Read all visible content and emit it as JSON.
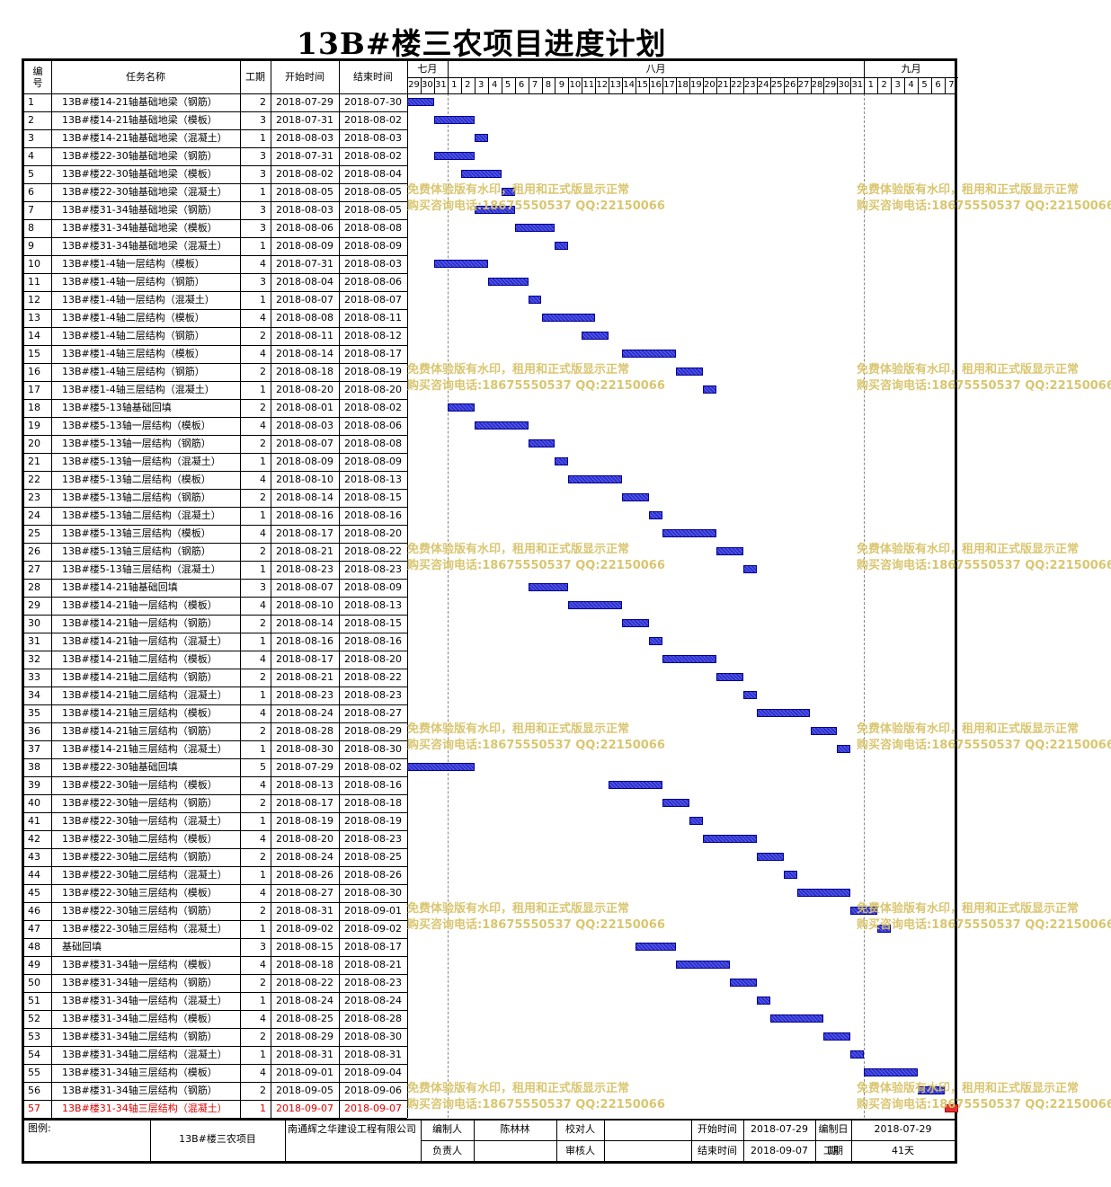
{
  "title": "13B#楼三农项目进度计划",
  "headers": {
    "no": "编号",
    "name": "任务名称",
    "duration": "工期",
    "start": "开始时间",
    "end": "结束时间"
  },
  "months": [
    "七月",
    "八月",
    "九月"
  ],
  "days": [
    "29",
    "30",
    "31",
    "1",
    "2",
    "3",
    "4",
    "5",
    "6",
    "7",
    "8",
    "9",
    "10",
    "11",
    "12",
    "13",
    "14",
    "15",
    "16",
    "17",
    "18",
    "19",
    "20",
    "21",
    "22",
    "23",
    "24",
    "25",
    "26",
    "27",
    "28",
    "29",
    "30",
    "31",
    "1",
    "2",
    "3",
    "4",
    "5",
    "6",
    "7"
  ],
  "tasks": [
    {
      "no": "1",
      "name": "13B#楼14-21轴基础地梁（钢筋）",
      "dur": "2",
      "start": "2018-07-29",
      "end": "2018-07-30"
    },
    {
      "no": "2",
      "name": "13B#楼14-21轴基础地梁（模板）",
      "dur": "3",
      "start": "2018-07-31",
      "end": "2018-08-02"
    },
    {
      "no": "3",
      "name": "13B#楼14-21轴基础地梁（混凝土）",
      "dur": "1",
      "start": "2018-08-03",
      "end": "2018-08-03"
    },
    {
      "no": "4",
      "name": "13B#楼22-30轴基础地梁（钢筋）",
      "dur": "3",
      "start": "2018-07-31",
      "end": "2018-08-02"
    },
    {
      "no": "5",
      "name": "13B#楼22-30轴基础地梁（模板）",
      "dur": "3",
      "start": "2018-08-02",
      "end": "2018-08-04"
    },
    {
      "no": "6",
      "name": "13B#楼22-30轴基础地梁（混凝土）",
      "dur": "1",
      "start": "2018-08-05",
      "end": "2018-08-05"
    },
    {
      "no": "7",
      "name": "13B#楼31-34轴基础地梁（钢筋）",
      "dur": "3",
      "start": "2018-08-03",
      "end": "2018-08-05"
    },
    {
      "no": "8",
      "name": "13B#楼31-34轴基础地梁（模板）",
      "dur": "3",
      "start": "2018-08-06",
      "end": "2018-08-08"
    },
    {
      "no": "9",
      "name": "13B#楼31-34轴基础地梁（混凝土）",
      "dur": "1",
      "start": "2018-08-09",
      "end": "2018-08-09"
    },
    {
      "no": "10",
      "name": "13B#楼1-4轴一层结构（模板）",
      "dur": "4",
      "start": "2018-07-31",
      "end": "2018-08-03"
    },
    {
      "no": "11",
      "name": "13B#楼1-4轴一层结构（钢筋）",
      "dur": "3",
      "start": "2018-08-04",
      "end": "2018-08-06"
    },
    {
      "no": "12",
      "name": "13B#楼1-4轴一层结构（混凝土）",
      "dur": "1",
      "start": "2018-08-07",
      "end": "2018-08-07"
    },
    {
      "no": "13",
      "name": "13B#楼1-4轴二层结构（模板）",
      "dur": "4",
      "start": "2018-08-08",
      "end": "2018-08-11"
    },
    {
      "no": "14",
      "name": "13B#楼1-4轴二层结构（钢筋）",
      "dur": "2",
      "start": "2018-08-11",
      "end": "2018-08-12"
    },
    {
      "no": "15",
      "name": "13B#楼1-4轴三层结构（模板）",
      "dur": "4",
      "start": "2018-08-14",
      "end": "2018-08-17"
    },
    {
      "no": "16",
      "name": "13B#楼1-4轴三层结构（钢筋）",
      "dur": "2",
      "start": "2018-08-18",
      "end": "2018-08-19"
    },
    {
      "no": "17",
      "name": "13B#楼1-4轴三层结构（混凝土）",
      "dur": "1",
      "start": "2018-08-20",
      "end": "2018-08-20"
    },
    {
      "no": "18",
      "name": "13B#楼5-13轴基础回填",
      "dur": "2",
      "start": "2018-08-01",
      "end": "2018-08-02"
    },
    {
      "no": "19",
      "name": "13B#楼5-13轴一层结构（模板）",
      "dur": "4",
      "start": "2018-08-03",
      "end": "2018-08-06"
    },
    {
      "no": "20",
      "name": "13B#楼5-13轴一层结构（钢筋）",
      "dur": "2",
      "start": "2018-08-07",
      "end": "2018-08-08"
    },
    {
      "no": "21",
      "name": "13B#楼5-13轴一层结构（混凝土）",
      "dur": "1",
      "start": "2018-08-09",
      "end": "2018-08-09"
    },
    {
      "no": "22",
      "name": "13B#楼5-13轴二层结构（模板）",
      "dur": "4",
      "start": "2018-08-10",
      "end": "2018-08-13"
    },
    {
      "no": "23",
      "name": "13B#楼5-13轴二层结构（钢筋）",
      "dur": "2",
      "start": "2018-08-14",
      "end": "2018-08-15"
    },
    {
      "no": "24",
      "name": "13B#楼5-13轴二层结构（混凝土）",
      "dur": "1",
      "start": "2018-08-16",
      "end": "2018-08-16"
    },
    {
      "no": "25",
      "name": "13B#楼5-13轴三层结构（模板）",
      "dur": "4",
      "start": "2018-08-17",
      "end": "2018-08-20"
    },
    {
      "no": "26",
      "name": "13B#楼5-13轴三层结构（钢筋）",
      "dur": "2",
      "start": "2018-08-21",
      "end": "2018-08-22"
    },
    {
      "no": "27",
      "name": "13B#楼5-13轴三层结构（混凝土）",
      "dur": "1",
      "start": "2018-08-23",
      "end": "2018-08-23"
    },
    {
      "no": "28",
      "name": "13B#楼14-21轴基础回填",
      "dur": "3",
      "start": "2018-08-07",
      "end": "2018-08-09"
    },
    {
      "no": "29",
      "name": "13B#楼14-21轴一层结构（模板）",
      "dur": "4",
      "start": "2018-08-10",
      "end": "2018-08-13"
    },
    {
      "no": "30",
      "name": "13B#楼14-21轴一层结构（钢筋）",
      "dur": "2",
      "start": "2018-08-14",
      "end": "2018-08-15"
    },
    {
      "no": "31",
      "name": "13B#楼14-21轴一层结构（混凝土）",
      "dur": "1",
      "start": "2018-08-16",
      "end": "2018-08-16"
    },
    {
      "no": "32",
      "name": "13B#楼14-21轴二层结构（模板）",
      "dur": "4",
      "start": "2018-08-17",
      "end": "2018-08-20"
    },
    {
      "no": "33",
      "name": "13B#楼14-21轴二层结构（钢筋）",
      "dur": "2",
      "start": "2018-08-21",
      "end": "2018-08-22"
    },
    {
      "no": "34",
      "name": "13B#楼14-21轴二层结构（混凝土）",
      "dur": "1",
      "start": "2018-08-23",
      "end": "2018-08-23"
    },
    {
      "no": "35",
      "name": "13B#楼14-21轴三层结构（模板）",
      "dur": "4",
      "start": "2018-08-24",
      "end": "2018-08-27"
    },
    {
      "no": "36",
      "name": "13B#楼14-21轴三层结构（钢筋）",
      "dur": "2",
      "start": "2018-08-28",
      "end": "2018-08-29"
    },
    {
      "no": "37",
      "name": "13B#楼14-21轴三层结构（混凝土）",
      "dur": "1",
      "start": "2018-08-30",
      "end": "2018-08-30"
    },
    {
      "no": "38",
      "name": "13B#楼22-30轴基础回填",
      "dur": "5",
      "start": "2018-07-29",
      "end": "2018-08-02"
    },
    {
      "no": "39",
      "name": "13B#楼22-30轴一层结构（模板）",
      "dur": "4",
      "start": "2018-08-13",
      "end": "2018-08-16"
    },
    {
      "no": "40",
      "name": "13B#楼22-30轴一层结构（钢筋）",
      "dur": "2",
      "start": "2018-08-17",
      "end": "2018-08-18"
    },
    {
      "no": "41",
      "name": "13B#楼22-30轴一层结构（混凝土）",
      "dur": "1",
      "start": "2018-08-19",
      "end": "2018-08-19"
    },
    {
      "no": "42",
      "name": "13B#楼22-30轴二层结构（模板）",
      "dur": "4",
      "start": "2018-08-20",
      "end": "2018-08-23"
    },
    {
      "no": "43",
      "name": "13B#楼22-30轴二层结构（钢筋）",
      "dur": "2",
      "start": "2018-08-24",
      "end": "2018-08-25"
    },
    {
      "no": "44",
      "name": "13B#楼22-30轴二层结构（混凝土）",
      "dur": "1",
      "start": "2018-08-26",
      "end": "2018-08-26"
    },
    {
      "no": "45",
      "name": "13B#楼22-30轴三层结构（模板）",
      "dur": "4",
      "start": "2018-08-27",
      "end": "2018-08-30"
    },
    {
      "no": "46",
      "name": "13B#楼22-30轴三层结构（钢筋）",
      "dur": "2",
      "start": "2018-08-31",
      "end": "2018-09-01"
    },
    {
      "no": "47",
      "name": "13B#楼22-30轴三层结构（混凝土）",
      "dur": "1",
      "start": "2018-09-02",
      "end": "2018-09-02"
    },
    {
      "no": "48",
      "name": "基础回填",
      "dur": "3",
      "start": "2018-08-15",
      "end": "2018-08-17"
    },
    {
      "no": "49",
      "name": "13B#楼31-34轴一层结构（模板）",
      "dur": "4",
      "start": "2018-08-18",
      "end": "2018-08-21"
    },
    {
      "no": "50",
      "name": "13B#楼31-34轴一层结构（钢筋）",
      "dur": "2",
      "start": "2018-08-22",
      "end": "2018-08-23"
    },
    {
      "no": "51",
      "name": "13B#楼31-34轴一层结构（混凝土）",
      "dur": "1",
      "start": "2018-08-24",
      "end": "2018-08-24"
    },
    {
      "no": "52",
      "name": "13B#楼31-34轴二层结构（模板）",
      "dur": "4",
      "start": "2018-08-25",
      "end": "2018-08-28"
    },
    {
      "no": "53",
      "name": "13B#楼31-34轴二层结构（钢筋）",
      "dur": "2",
      "start": "2018-08-29",
      "end": "2018-08-30"
    },
    {
      "no": "54",
      "name": "13B#楼31-34轴二层结构（混凝土）",
      "dur": "1",
      "start": "2018-08-31",
      "end": "2018-08-31"
    },
    {
      "no": "55",
      "name": "13B#楼31-34轴三层结构（模板）",
      "dur": "4",
      "start": "2018-09-01",
      "end": "2018-09-04"
    },
    {
      "no": "56",
      "name": "13B#楼31-34轴三层结构（钢筋）",
      "dur": "2",
      "start": "2018-09-05",
      "end": "2018-09-06"
    },
    {
      "no": "57",
      "name": "13B#楼31-34轴三层结构（混凝土）",
      "dur": "1",
      "start": "2018-09-07",
      "end": "2018-09-07",
      "highlight": true
    }
  ],
  "watermark": {
    "line1": "免费体验版有水印，租用和正式版显示正常",
    "line2": "购买咨询电话:18675550537 QQ:22150066"
  },
  "footer": {
    "legend_label": "图例:",
    "project": "13B#楼三农项目",
    "company": "南通辉之华建设工程有限公司",
    "compiler_label": "编制人",
    "compiler": "陈林林",
    "checker_label": "校对人",
    "checker": "",
    "start_label": "开始时间",
    "start": "2018-07-29",
    "compile_date_label": "编制日期",
    "compile_date": "2018-07-29",
    "owner_label": "负责人",
    "owner": "",
    "reviewer_label": "审核人",
    "reviewer": "",
    "end_label": "结束时间",
    "end": "2018-09-07",
    "duration_label": "工期",
    "duration": "41天"
  },
  "colors": {
    "bar": "#2a2ed4",
    "highlight": "#e03030",
    "watermark": "#d8c36a"
  }
}
